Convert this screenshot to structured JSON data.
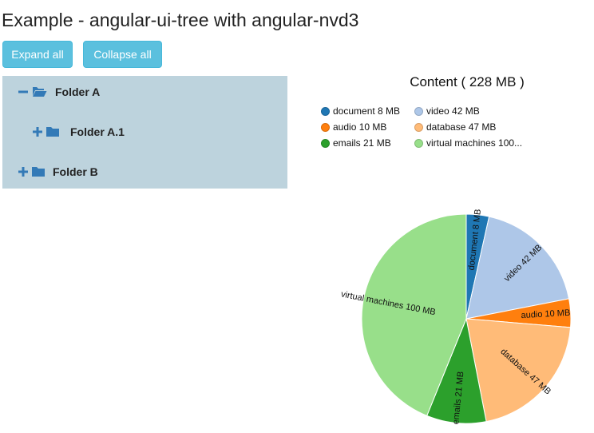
{
  "page": {
    "title": "Example - angular-ui-tree with angular-nvd3"
  },
  "toolbar": {
    "expand_label": "Expand all",
    "collapse_label": "Collapse all"
  },
  "tree": {
    "nodes": [
      {
        "label": "Folder A",
        "toggle": "minus-icon",
        "icon": "folder-open-icon"
      },
      {
        "label": "Folder A.1",
        "toggle": "plus-icon",
        "icon": "folder-icon"
      },
      {
        "label": "Folder B",
        "toggle": "plus-icon",
        "icon": "folder-icon"
      }
    ],
    "accent_color": "#337ab7",
    "background_color": "#bdd3dd"
  },
  "chart_data": {
    "type": "pie",
    "title": "Content ( 228 MB )",
    "legend_position": "top",
    "unit": "MB",
    "slices": [
      {
        "name": "document",
        "value": 8,
        "label": "document 8 MB",
        "color": "#1f77b4"
      },
      {
        "name": "video",
        "value": 42,
        "label": "video 42 MB",
        "color": "#aec7e8"
      },
      {
        "name": "audio",
        "value": 10,
        "label": "audio 10 MB",
        "color": "#ff7f0e"
      },
      {
        "name": "database",
        "value": 47,
        "label": "database 47 MB",
        "color": "#ffbb78"
      },
      {
        "name": "emails",
        "value": 21,
        "label": "emails 21 MB",
        "color": "#2ca02c"
      },
      {
        "name": "virtual machines",
        "value": 100,
        "label": "virtual machines 100 MB",
        "color": "#98df8a"
      }
    ],
    "legend": [
      {
        "label": "document 8 MB",
        "color": "#1f77b4"
      },
      {
        "label": "video 42 MB",
        "color": "#aec7e8"
      },
      {
        "label": "audio 10 MB",
        "color": "#ff7f0e"
      },
      {
        "label": "database 47 MB",
        "color": "#ffbb78"
      },
      {
        "label": "emails 21 MB",
        "color": "#2ca02c"
      },
      {
        "label": "virtual machines 100...",
        "color": "#98df8a"
      }
    ]
  }
}
